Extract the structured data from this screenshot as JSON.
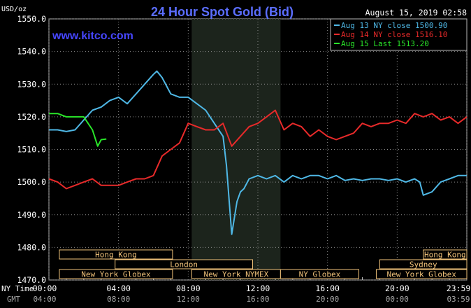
{
  "chart_data": {
    "type": "line",
    "title": "24 Hour Spot Gold (Bid)",
    "unit_label": "USD/oz",
    "date_label": "August 15, 2019 02:58",
    "watermark": "www.kitco.com",
    "ylim": [
      1470,
      1550
    ],
    "xlim_hours": [
      0,
      24
    ],
    "y_ticks": [
      1550,
      1540,
      1530,
      1520,
      1510,
      1500,
      1490,
      1480,
      1470
    ],
    "y_tick_labels": [
      "1550.0",
      "1540.0",
      "1530.0",
      "1520.0",
      "1510.0",
      "1500.0",
      "1490.0",
      "1480.0",
      "1470.0"
    ],
    "x_ticks_ny": [
      "00:00",
      "04:00",
      "08:00",
      "12:00",
      "16:00",
      "20:00",
      "23:59"
    ],
    "x_ticks_gmt": [
      "04:00",
      "08:00",
      "12:00",
      "16:00",
      "20:00",
      "00:00",
      "03:59"
    ],
    "x_row_labels": [
      "NY Time",
      "GMT"
    ],
    "legend": [
      "Aug 13 NY close 1500.90",
      "Aug 14 NY close 1516.10",
      "Aug 15 Last 1513.20"
    ],
    "series": [
      {
        "name": "Aug 13 NY close 1500.90",
        "color": "#4fb8e6",
        "x": [
          0,
          0.5,
          1,
          1.5,
          2,
          2.5,
          3,
          3.5,
          4,
          4.5,
          5,
          5.5,
          6,
          6.2,
          6.5,
          7,
          7.5,
          8,
          8.5,
          9,
          9.5,
          10,
          10.2,
          10.5,
          10.8,
          11,
          11.2,
          11.5,
          12,
          12.5,
          13,
          13.5,
          14,
          14.5,
          15,
          15.5,
          16,
          16.5,
          17,
          17.5,
          18,
          18.5,
          19,
          19.5,
          20,
          20.5,
          21,
          21.3,
          21.5,
          22,
          22.5,
          23,
          23.5,
          24
        ],
        "values": [
          1516,
          1516,
          1515.5,
          1516,
          1519,
          1522,
          1523,
          1525,
          1526,
          1524,
          1527,
          1530,
          1533,
          1534,
          1532,
          1527,
          1526,
          1526,
          1524,
          1522,
          1518,
          1514,
          1505,
          1484,
          1494,
          1497,
          1498,
          1501,
          1502,
          1501,
          1502,
          1500,
          1502,
          1501,
          1502,
          1502,
          1501,
          1502,
          1500.5,
          1501,
          1500.5,
          1501,
          1501,
          1500.5,
          1501,
          1500,
          1501,
          1500,
          1496,
          1497,
          1500,
          1501,
          1502,
          1502
        ]
      },
      {
        "name": "Aug 14 NY close 1516.10",
        "color": "#e82a2a",
        "x": [
          0,
          0.5,
          1,
          1.5,
          2,
          2.5,
          3,
          3.5,
          4,
          4.5,
          5,
          5.5,
          6,
          6.5,
          7,
          7.5,
          8,
          8.5,
          9,
          9.5,
          10,
          10.5,
          11,
          11.5,
          12,
          12.5,
          13,
          13.5,
          14,
          14.5,
          15,
          15.5,
          16,
          16.5,
          17,
          17.5,
          18,
          18.5,
          19,
          19.5,
          20,
          20.5,
          21,
          21.5,
          22,
          22.5,
          23,
          23.5,
          24
        ],
        "values": [
          1501,
          1500,
          1498,
          1499,
          1500,
          1501,
          1499,
          1499,
          1499,
          1500,
          1501,
          1501,
          1502,
          1508,
          1510,
          1512,
          1518,
          1517,
          1516,
          1516,
          1518,
          1511,
          1514,
          1517,
          1518,
          1520,
          1522,
          1516,
          1518,
          1517,
          1514,
          1516,
          1514,
          1513,
          1514,
          1515,
          1518,
          1517,
          1518,
          1518,
          1519,
          1518,
          1521,
          1520,
          1521,
          1519,
          1520,
          1518,
          1520
        ]
      },
      {
        "name": "Aug 15 Last 1513.20",
        "color": "#29e629",
        "x": [
          0,
          0.5,
          1,
          1.5,
          2,
          2.5,
          2.8,
          3,
          3.3
        ],
        "values": [
          1521,
          1521,
          1520,
          1520,
          1520,
          1516,
          1511,
          1513,
          1513.2
        ]
      }
    ],
    "market_sessions": [
      {
        "label": "Hong Kong",
        "start": 0.6,
        "end": 7.1,
        "row": 0
      },
      {
        "label": "Hong Kong",
        "start": 21.5,
        "end": 24,
        "row": 0
      },
      {
        "label": "London",
        "start": 3.8,
        "end": 11.7,
        "row": 1
      },
      {
        "label": "Sydney",
        "start": 19.0,
        "end": 24,
        "row": 1
      },
      {
        "label": "New York Globex",
        "start": 0.6,
        "end": 7.1,
        "row": 2
      },
      {
        "label": "New York NYMEX",
        "start": 8.2,
        "end": 13.3,
        "row": 2
      },
      {
        "label": "NY Globex",
        "start": 13.3,
        "end": 17.8,
        "row": 2
      },
      {
        "label": "New York Globex",
        "start": 18.8,
        "end": 24,
        "row": 2
      }
    ],
    "shaded_region_hours": [
      8.2,
      13.3
    ],
    "grid": true,
    "legend_position": "top-right"
  }
}
